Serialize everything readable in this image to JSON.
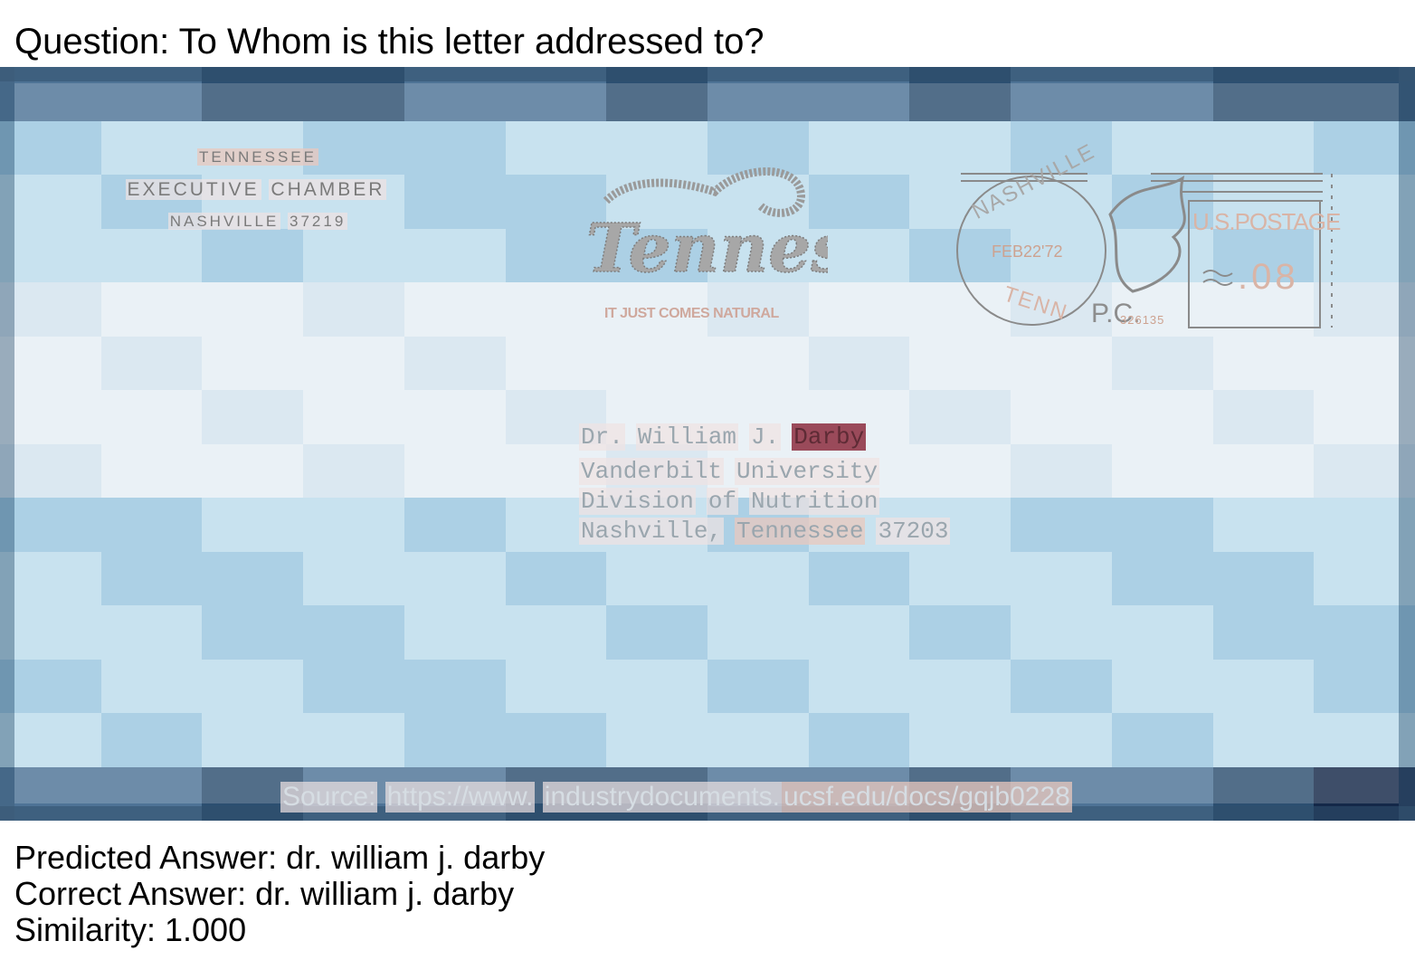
{
  "question": "Question: To Whom is this letter addressed to?",
  "return_address": {
    "line1": "TENNESSEE",
    "line2_a": "EXECUTIVE",
    "line2_b": "CHAMBER",
    "line3_a": "NASHVILLE",
    "line3_b": "37219"
  },
  "logo": {
    "name": "tennessee-script-logo",
    "slogan": "IT JUST COMES NATURAL"
  },
  "postmark": {
    "city": "NASHVILLE",
    "state": "TENN",
    "date": "FEB22'72",
    "postage_label": "U.S.POSTAGE",
    "amount": ".08",
    "pc": "P.C.",
    "meter_no": "326135"
  },
  "recipient": {
    "line1": [
      "Dr.",
      "William",
      "J.",
      "Darby"
    ],
    "line2": [
      "Vanderbilt",
      "University"
    ],
    "line3": [
      "Division",
      "of",
      "Nutrition"
    ],
    "line4": [
      "Nashville,",
      "Tennessee",
      "37203"
    ]
  },
  "source": [
    "Source:",
    "https://www.",
    "industrydocuments.",
    "ucsf.edu/docs/gqjb0228"
  ],
  "results": {
    "predicted": "Predicted Answer: dr. william j. darby",
    "correct": "Correct Answer: dr. william j. darby",
    "similarity": "Similarity: 1.000"
  },
  "colors": {
    "heat_low": "#bcdcec",
    "heat_high": "#9ac6e0",
    "highlight": "#9a4a5a"
  }
}
